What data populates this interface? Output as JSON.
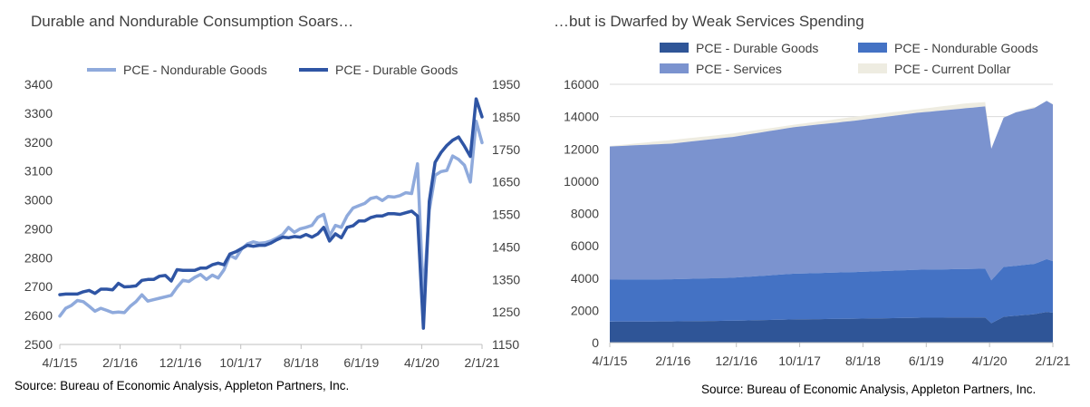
{
  "chart_data": [
    {
      "type": "line",
      "title": "Durable and Nondurable Consumption Soars…",
      "source": "Source: Bureau of Economic Analysis, Appleton Partners, Inc.",
      "legend_position": "top",
      "x_tick_labels": [
        "4/1/15",
        "2/1/16",
        "12/1/16",
        "10/1/17",
        "8/1/18",
        "6/1/19",
        "4/1/20",
        "2/1/21"
      ],
      "y_left_ticks": [
        "2500",
        "2600",
        "2700",
        "2800",
        "2900",
        "3000",
        "3100",
        "3200",
        "3300",
        "3400"
      ],
      "y_right_ticks": [
        "1150",
        "1250",
        "1350",
        "1450",
        "1550",
        "1650",
        "1750",
        "1850",
        "1950"
      ],
      "y_left_range": [
        2500,
        3400
      ],
      "y_right_range": [
        1150,
        1950
      ],
      "series": [
        {
          "name": "PCE - Nondurable Goods",
          "axis": "left",
          "color": "#8FAADC",
          "values": [
            2598,
            2625,
            2635,
            2652,
            2648,
            2632,
            2615,
            2625,
            2618,
            2610,
            2612,
            2610,
            2632,
            2648,
            2672,
            2650,
            2655,
            2660,
            2665,
            2670,
            2698,
            2722,
            2718,
            2732,
            2742,
            2725,
            2740,
            2730,
            2758,
            2808,
            2798,
            2830,
            2848,
            2855,
            2850,
            2852,
            2858,
            2868,
            2880,
            2905,
            2888,
            2900,
            2905,
            2912,
            2940,
            2950,
            2875,
            2912,
            2905,
            2945,
            2972,
            2980,
            2988,
            3005,
            3010,
            2998,
            3012,
            3010,
            3015,
            3025,
            3022,
            3125,
            2660,
            2965,
            3085,
            3098,
            3102,
            3152,
            3140,
            3120,
            3062,
            3272,
            3198
          ]
        },
        {
          "name": "PCE - Durable Goods",
          "axis": "right",
          "color": "#2F55A4",
          "values": [
            1303,
            1305,
            1305,
            1305,
            1312,
            1316,
            1307,
            1320,
            1320,
            1318,
            1338,
            1327,
            1328,
            1330,
            1347,
            1350,
            1350,
            1360,
            1362,
            1345,
            1380,
            1378,
            1378,
            1378,
            1385,
            1385,
            1395,
            1400,
            1395,
            1428,
            1435,
            1445,
            1455,
            1452,
            1455,
            1455,
            1462,
            1472,
            1480,
            1478,
            1482,
            1480,
            1488,
            1480,
            1490,
            1510,
            1468,
            1490,
            1478,
            1510,
            1515,
            1530,
            1530,
            1540,
            1545,
            1545,
            1552,
            1552,
            1550,
            1555,
            1560,
            1545,
            1200,
            1590,
            1710,
            1740,
            1762,
            1778,
            1788,
            1760,
            1728,
            1905,
            1850
          ]
        }
      ]
    },
    {
      "type": "area",
      "title": "…but is Dwarfed by Weak Services Spending",
      "source": "Source: Bureau of Economic Analysis, Appleton Partners, Inc.",
      "legend_position": "top",
      "x_tick_labels": [
        "4/1/15",
        "2/1/16",
        "12/1/16",
        "10/1/17",
        "8/1/18",
        "6/1/19",
        "4/1/20",
        "2/1/21"
      ],
      "y_ticks": [
        "0",
        "2000",
        "4000",
        "6000",
        "8000",
        "10000",
        "12000",
        "14000",
        "16000"
      ],
      "ylim": [
        0,
        16000
      ],
      "stacked": true,
      "series": [
        {
          "name": "PCE - Durable Goods",
          "color": "#2F5597",
          "anchors": [
            [
              0,
              1300
            ],
            [
              10,
              1315
            ],
            [
              20,
              1355
            ],
            [
              30,
              1440
            ],
            [
              40,
              1480
            ],
            [
              50,
              1540
            ],
            [
              61,
              1555
            ],
            [
              62,
              1200
            ],
            [
              64,
              1600
            ],
            [
              69,
              1760
            ],
            [
              71,
              1900
            ],
            [
              72,
              1850
            ]
          ]
        },
        {
          "name": "PCE - Nondurable Goods",
          "color": "#4472C4",
          "anchors": [
            [
              0,
              2600
            ],
            [
              10,
              2610
            ],
            [
              20,
              2665
            ],
            [
              30,
              2830
            ],
            [
              40,
              2895
            ],
            [
              50,
              2975
            ],
            [
              61,
              3025
            ],
            [
              62,
              2660
            ],
            [
              64,
              3085
            ],
            [
              69,
              3120
            ],
            [
              71,
              3272
            ],
            [
              72,
              3198
            ]
          ]
        },
        {
          "name": "PCE - Services",
          "color": "#7B93CF",
          "anchors": [
            [
              0,
              8250
            ],
            [
              10,
              8400
            ],
            [
              20,
              8720
            ],
            [
              30,
              9080
            ],
            [
              40,
              9380
            ],
            [
              50,
              9720
            ],
            [
              61,
              10050
            ],
            [
              62,
              8150
            ],
            [
              64,
              9250
            ],
            [
              66,
              9500
            ],
            [
              69,
              9650
            ],
            [
              71,
              9800
            ],
            [
              72,
              9700
            ]
          ]
        },
        {
          "name": "PCE - Current Dollar",
          "color": "#EEECE1",
          "anchors": [
            [
              0,
              12180
            ],
            [
              10,
              12550
            ],
            [
              20,
              12950
            ],
            [
              30,
              13500
            ],
            [
              40,
              14000
            ],
            [
              50,
              14450
            ],
            [
              58,
              14820
            ],
            [
              61,
              14900
            ],
            [
              62,
              12050
            ],
            [
              64,
              13900
            ],
            [
              67,
              14400
            ],
            [
              69,
              14600
            ],
            [
              70,
              14550
            ],
            [
              71,
              14980
            ],
            [
              72,
              14780
            ]
          ]
        }
      ]
    }
  ]
}
